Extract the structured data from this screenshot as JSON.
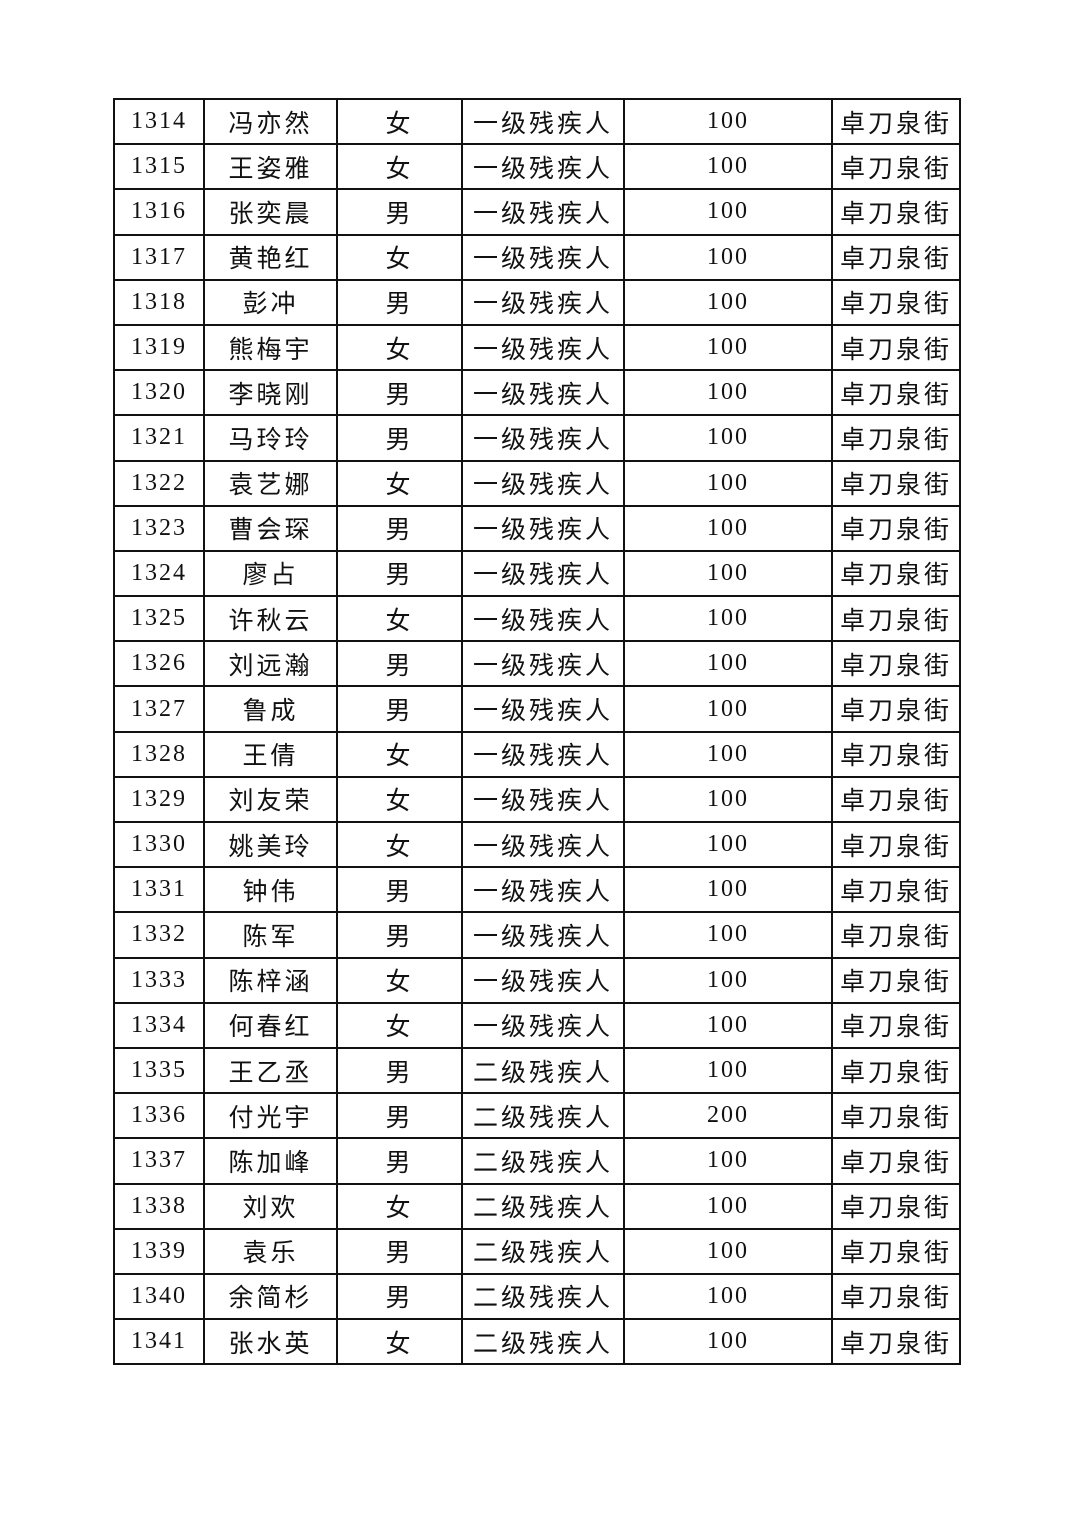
{
  "table": {
    "rows": [
      [
        "1314",
        "冯亦然",
        "女",
        "一级残疾人",
        "100",
        "卓刀泉街"
      ],
      [
        "1315",
        "王姿雅",
        "女",
        "一级残疾人",
        "100",
        "卓刀泉街"
      ],
      [
        "1316",
        "张奕晨",
        "男",
        "一级残疾人",
        "100",
        "卓刀泉街"
      ],
      [
        "1317",
        "黄艳红",
        "女",
        "一级残疾人",
        "100",
        "卓刀泉街"
      ],
      [
        "1318",
        "彭冲",
        "男",
        "一级残疾人",
        "100",
        "卓刀泉街"
      ],
      [
        "1319",
        "熊梅宇",
        "女",
        "一级残疾人",
        "100",
        "卓刀泉街"
      ],
      [
        "1320",
        "李晓刚",
        "男",
        "一级残疾人",
        "100",
        "卓刀泉街"
      ],
      [
        "1321",
        "马玲玲",
        "男",
        "一级残疾人",
        "100",
        "卓刀泉街"
      ],
      [
        "1322",
        "袁艺娜",
        "女",
        "一级残疾人",
        "100",
        "卓刀泉街"
      ],
      [
        "1323",
        "曹会琛",
        "男",
        "一级残疾人",
        "100",
        "卓刀泉街"
      ],
      [
        "1324",
        "廖占",
        "男",
        "一级残疾人",
        "100",
        "卓刀泉街"
      ],
      [
        "1325",
        "许秋云",
        "女",
        "一级残疾人",
        "100",
        "卓刀泉街"
      ],
      [
        "1326",
        "刘远瀚",
        "男",
        "一级残疾人",
        "100",
        "卓刀泉街"
      ],
      [
        "1327",
        "鲁成",
        "男",
        "一级残疾人",
        "100",
        "卓刀泉街"
      ],
      [
        "1328",
        "王倩",
        "女",
        "一级残疾人",
        "100",
        "卓刀泉街"
      ],
      [
        "1329",
        "刘友荣",
        "女",
        "一级残疾人",
        "100",
        "卓刀泉街"
      ],
      [
        "1330",
        "姚美玲",
        "女",
        "一级残疾人",
        "100",
        "卓刀泉街"
      ],
      [
        "1331",
        "钟伟",
        "男",
        "一级残疾人",
        "100",
        "卓刀泉街"
      ],
      [
        "1332",
        "陈军",
        "男",
        "一级残疾人",
        "100",
        "卓刀泉街"
      ],
      [
        "1333",
        "陈梓涵",
        "女",
        "一级残疾人",
        "100",
        "卓刀泉街"
      ],
      [
        "1334",
        "何春红",
        "女",
        "一级残疾人",
        "100",
        "卓刀泉街"
      ],
      [
        "1335",
        "王乙丞",
        "男",
        "二级残疾人",
        "100",
        "卓刀泉街"
      ],
      [
        "1336",
        "付光宇",
        "男",
        "二级残疾人",
        "200",
        "卓刀泉街"
      ],
      [
        "1337",
        "陈加峰",
        "男",
        "二级残疾人",
        "100",
        "卓刀泉街"
      ],
      [
        "1338",
        "刘欢",
        "女",
        "二级残疾人",
        "100",
        "卓刀泉街"
      ],
      [
        "1339",
        "袁乐",
        "男",
        "二级残疾人",
        "100",
        "卓刀泉街"
      ],
      [
        "1340",
        "余简杉",
        "男",
        "二级残疾人",
        "100",
        "卓刀泉街"
      ],
      [
        "1341",
        "张水英",
        "女",
        "二级残疾人",
        "100",
        "卓刀泉街"
      ]
    ]
  }
}
